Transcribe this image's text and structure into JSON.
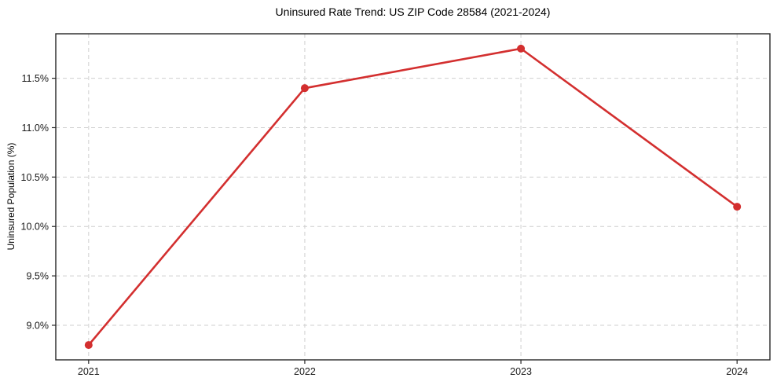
{
  "chart_data": {
    "type": "line",
    "title": "Uninsured Rate Trend: US ZIP Code 28584 (2021-2024)",
    "xlabel": "",
    "ylabel": "Uninsured Population (%)",
    "categories": [
      "2021",
      "2022",
      "2023",
      "2024"
    ],
    "series": [
      {
        "name": "Uninsured Population (%)",
        "values": [
          8.8,
          11.4,
          11.8,
          10.2
        ],
        "color": "#d32f2f",
        "marker": "circle"
      }
    ],
    "y_ticks": [
      9.0,
      9.5,
      10.0,
      10.5,
      11.0,
      11.5
    ],
    "y_tick_labels": [
      "9.0%",
      "9.5%",
      "10.0%",
      "10.5%",
      "11.0%",
      "11.5%"
    ],
    "ylim": [
      8.65,
      11.95
    ],
    "grid": true,
    "grid_style": "dashed",
    "legend_position": "none",
    "colors": {
      "line": "#d32f2f",
      "grid": "#cfcfcf",
      "axis": "#262626",
      "text": "#1a1a1a",
      "background": "#ffffff"
    }
  }
}
